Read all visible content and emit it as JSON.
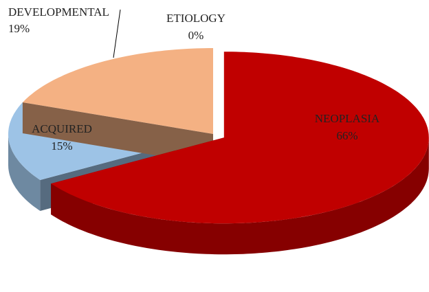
{
  "chart_data": {
    "type": "pie3d",
    "categories": [
      "ETIOLOGY",
      "NEOPLASIA",
      "ACQUIRED",
      "DEVELOPMENTAL"
    ],
    "values": [
      0,
      66,
      15,
      19
    ],
    "value_labels": [
      "0%",
      "66%",
      "15%",
      "19%"
    ],
    "colors": [
      "#ffffff",
      "#c00000",
      "#9dc3e6",
      "#f4b183"
    ],
    "exploded": "NEOPLASIA"
  }
}
